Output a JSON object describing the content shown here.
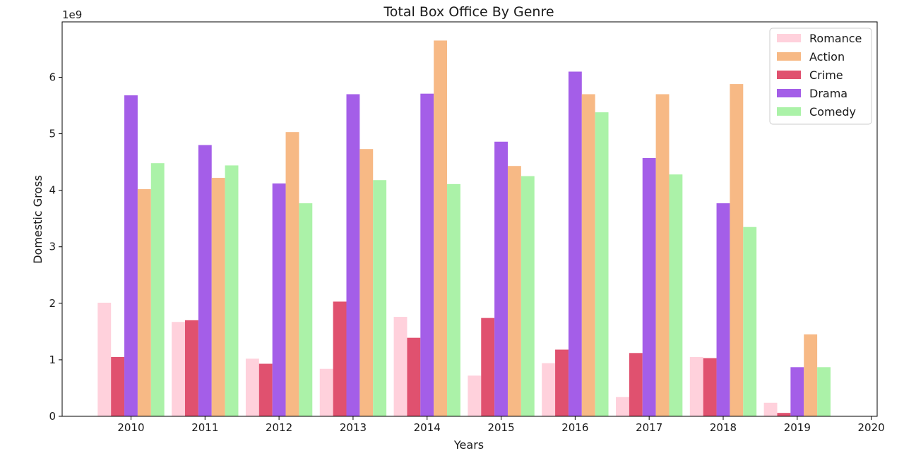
{
  "chart_data": {
    "type": "bar",
    "title": "Total Box Office By Genre",
    "xlabel": "Years",
    "ylabel": "Domestic Gross",
    "y_offset_label": "1e9",
    "categories": [
      "2010",
      "2011",
      "2012",
      "2013",
      "2014",
      "2015",
      "2016",
      "2017",
      "2018",
      "2019"
    ],
    "x_ticks": [
      2010,
      2011,
      2012,
      2013,
      2014,
      2015,
      2016,
      2017,
      2018,
      2019,
      2020
    ],
    "xlim": [
      2009.07,
      2020.08
    ],
    "ylim": [
      0,
      6.98
    ],
    "y_ticks": [
      0,
      1,
      2,
      3,
      4,
      5,
      6
    ],
    "grid": false,
    "legend_position": "top-right",
    "legend_order": [
      "Romance",
      "Action",
      "Crime",
      "Drama",
      "Comedy"
    ],
    "series": [
      {
        "name": "Romance",
        "color": "#ffd1dc",
        "slot": 0,
        "values": [
          2.01,
          1.67,
          1.02,
          0.84,
          1.76,
          0.72,
          0.94,
          0.34,
          1.05,
          0.24
        ]
      },
      {
        "name": "Crime",
        "color": "#e0516f",
        "slot": 1,
        "values": [
          1.05,
          1.7,
          0.93,
          2.03,
          1.39,
          1.74,
          1.18,
          1.12,
          1.03,
          0.06
        ]
      },
      {
        "name": "Drama",
        "color": "#a45ee8",
        "slot": 2,
        "values": [
          5.68,
          4.8,
          4.12,
          5.7,
          5.71,
          4.86,
          6.1,
          4.57,
          3.77,
          0.87
        ]
      },
      {
        "name": "Action",
        "color": "#f7b985",
        "slot": 3,
        "values": [
          4.02,
          4.22,
          5.03,
          4.73,
          6.65,
          4.43,
          5.7,
          5.7,
          5.88,
          1.45
        ]
      },
      {
        "name": "Comedy",
        "color": "#abf2a8",
        "slot": 4,
        "values": [
          4.48,
          4.44,
          3.77,
          4.18,
          4.11,
          4.25,
          5.38,
          4.28,
          3.35,
          0.87
        ]
      }
    ]
  }
}
